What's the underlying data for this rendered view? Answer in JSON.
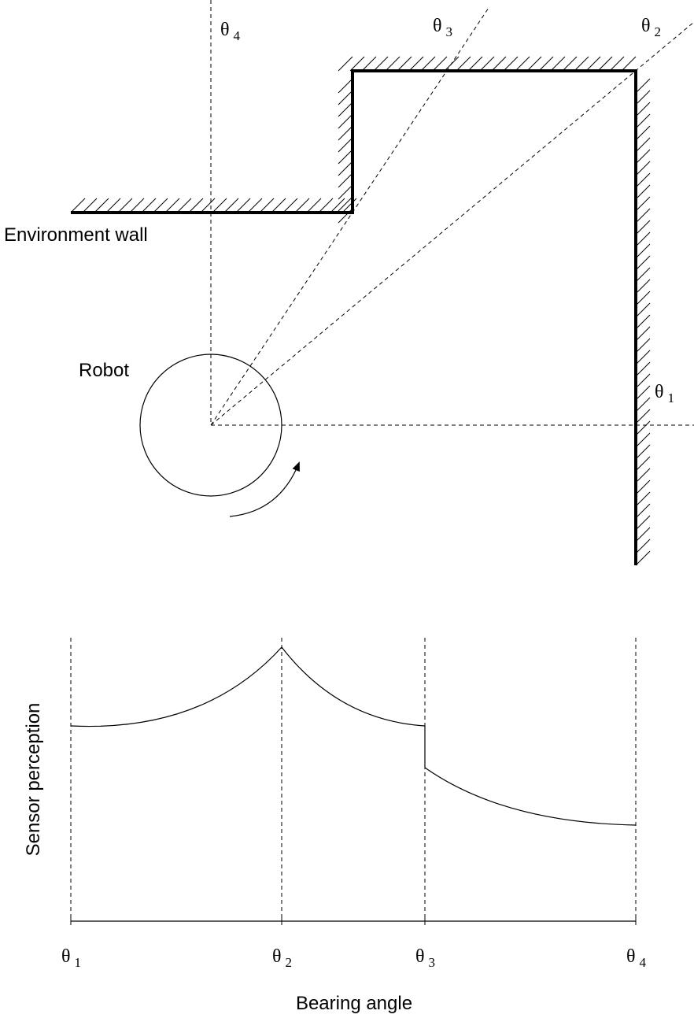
{
  "top": {
    "labels": [
      {
        "base": "θ",
        "subscript": "4"
      },
      {
        "base": "θ",
        "subscript": "3"
      },
      {
        "base": "θ",
        "subscript": "2"
      },
      {
        "base": "θ",
        "subscript": "1"
      }
    ],
    "wall_label": "Environment wall",
    "robot_label": "Robot"
  },
  "bottom": {
    "y_label": "Sensor perception",
    "x_label": "Bearing angle",
    "x_ticks": [
      {
        "base": "θ",
        "subscript": "1"
      },
      {
        "base": "θ",
        "subscript": "2"
      },
      {
        "base": "θ",
        "subscript": "3"
      },
      {
        "base": "θ",
        "subscript": "4"
      }
    ]
  }
}
